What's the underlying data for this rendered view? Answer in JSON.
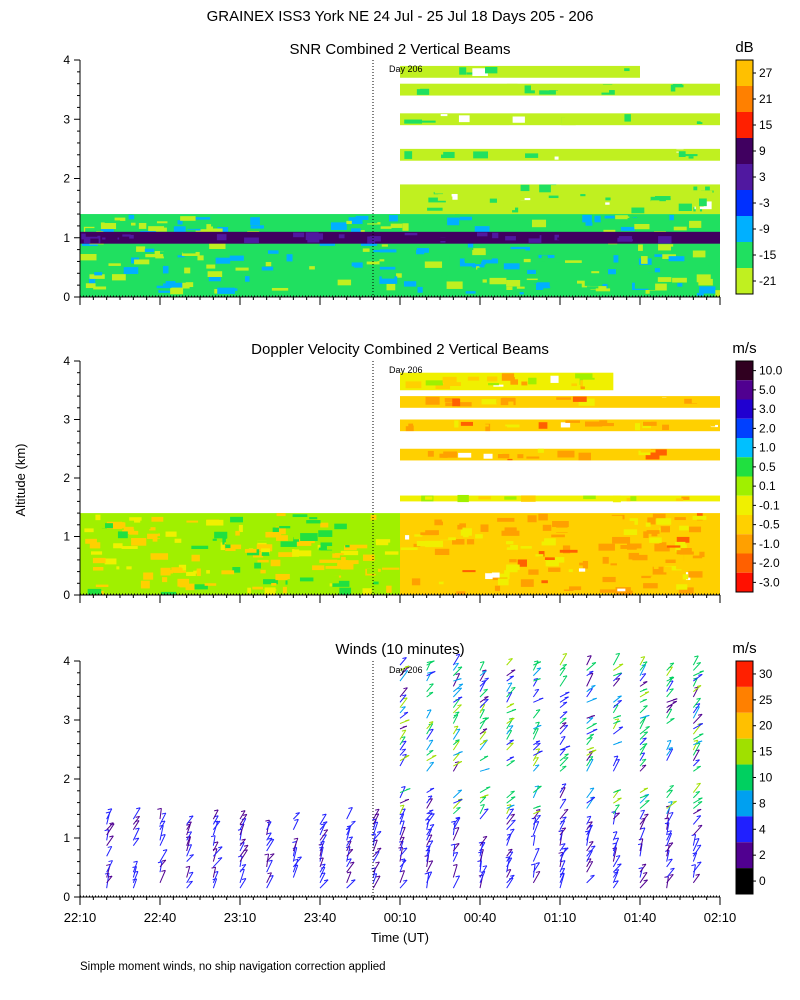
{
  "page_title": "GRAINEX ISS3 York NE  24 Jul - 25 Jul 18 Days 205 - 206",
  "footer_note": "Simple moment winds, no ship navigation correction applied",
  "ylabel": "Altitude (km)",
  "xlabel": "Time (UT)",
  "day_marker": "Day 206",
  "chart_data": [
    {
      "type": "heatmap",
      "title": "SNR Combined 2 Vertical Beams",
      "units": "dB",
      "xlim": [
        "22:10",
        "02:10"
      ],
      "ylim": [
        0,
        4
      ],
      "y_ticks": [
        "0",
        "1",
        "2",
        "3",
        "4"
      ],
      "x_ticks": [
        "22:10",
        "22:40",
        "23:10",
        "23:40",
        "00:10",
        "00:40",
        "01:10",
        "01:40",
        "02:10"
      ],
      "colorbar_labels": [
        "27",
        "21",
        "15",
        "9",
        "3",
        "-3",
        "-9",
        "-15",
        "-21"
      ],
      "colorbar_colors": [
        "#ffc000",
        "#ff8000",
        "#ff2000",
        "#400060",
        "#5018a0",
        "#0030ff",
        "#00b0ff",
        "#20e060",
        "#c0f020"
      ],
      "layers": [
        {
          "x0": "22:10",
          "x1": "02:10",
          "y0": 0.0,
          "y1": 1.4,
          "value": -12
        },
        {
          "x0": "22:10",
          "x1": "02:10",
          "y0": 0.9,
          "y1": 1.1,
          "value": 9
        },
        {
          "x0": "00:10",
          "x1": "02:10",
          "y0": 1.4,
          "y1": 1.9,
          "value": -18
        },
        {
          "x0": "00:10",
          "x1": "02:10",
          "y0": 2.3,
          "y1": 2.5,
          "value": -18
        },
        {
          "x0": "00:10",
          "x1": "02:10",
          "y0": 2.9,
          "y1": 3.1,
          "value": -18
        },
        {
          "x0": "00:10",
          "x1": "02:10",
          "y0": 3.4,
          "y1": 3.6,
          "value": -18
        },
        {
          "x0": "00:10",
          "x1": "01:40",
          "y0": 3.7,
          "y1": 3.9,
          "value": -18
        }
      ]
    },
    {
      "type": "heatmap",
      "title": "Doppler Velocity Combined 2 Vertical Beams",
      "units": "m/s",
      "xlim": [
        "22:10",
        "02:10"
      ],
      "ylim": [
        0,
        4
      ],
      "y_ticks": [
        "0",
        "1",
        "2",
        "3",
        "4"
      ],
      "x_ticks": [
        "22:10",
        "22:40",
        "23:10",
        "23:40",
        "00:10",
        "00:40",
        "01:10",
        "01:40",
        "02:10"
      ],
      "colorbar_labels": [
        "10.0",
        "5.0",
        "3.0",
        "2.0",
        "1.0",
        "0.5",
        "0.1",
        "-0.1",
        "-0.5",
        "-1.0",
        "-2.0",
        "-3.0"
      ],
      "colorbar_colors": [
        "#300020",
        "#500090",
        "#2000d0",
        "#0040ff",
        "#00c0ff",
        "#20e040",
        "#a0f000",
        "#f0f000",
        "#ffd000",
        "#ffa000",
        "#ff6000",
        "#ff1000"
      ],
      "layers": [
        {
          "x0": "22:10",
          "x1": "00:10",
          "y0": 0.0,
          "y1": 1.4,
          "value": 0.1
        },
        {
          "x0": "00:10",
          "x1": "02:10",
          "y0": 0.0,
          "y1": 1.4,
          "value": -0.5
        },
        {
          "x0": "00:10",
          "x1": "02:10",
          "y0": 1.6,
          "y1": 1.7,
          "value": -0.1
        },
        {
          "x0": "00:10",
          "x1": "02:10",
          "y0": 2.3,
          "y1": 2.5,
          "value": -0.5
        },
        {
          "x0": "00:10",
          "x1": "02:10",
          "y0": 2.8,
          "y1": 3.0,
          "value": -0.5
        },
        {
          "x0": "00:10",
          "x1": "02:10",
          "y0": 3.2,
          "y1": 3.4,
          "value": -0.5
        },
        {
          "x0": "00:10",
          "x1": "01:30",
          "y0": 3.5,
          "y1": 3.8,
          "value": -0.1
        }
      ]
    },
    {
      "type": "scatter",
      "title": "Winds (10 minutes)",
      "units": "m/s",
      "xlim": [
        "22:10",
        "02:10"
      ],
      "ylim": [
        0,
        4
      ],
      "y_ticks": [
        "0",
        "1",
        "2",
        "3",
        "4"
      ],
      "x_ticks": [
        "22:10",
        "22:40",
        "23:10",
        "23:40",
        "00:10",
        "00:40",
        "01:10",
        "01:40",
        "02:10"
      ],
      "colorbar_labels": [
        "30",
        "25",
        "20",
        "15",
        "10",
        "8",
        "4",
        "2",
        "0"
      ],
      "colorbar_colors": [
        "#ff2000",
        "#ff8000",
        "#ffc000",
        "#a0e000",
        "#00d060",
        "#00a0f0",
        "#2020ff",
        "#500090",
        "#000000"
      ],
      "profiles": [
        {
          "time": "22:20",
          "top_km": 1.4
        },
        {
          "time": "22:30",
          "top_km": 1.4
        },
        {
          "time": "22:40",
          "top_km": 1.4
        },
        {
          "time": "22:50",
          "top_km": 1.4
        },
        {
          "time": "23:00",
          "top_km": 1.4
        },
        {
          "time": "23:10",
          "top_km": 1.4
        },
        {
          "time": "23:20",
          "top_km": 1.4
        },
        {
          "time": "23:30",
          "top_km": 1.4
        },
        {
          "time": "23:40",
          "top_km": 1.4
        },
        {
          "time": "23:50",
          "top_km": 1.4
        },
        {
          "time": "00:00",
          "top_km": 1.4
        },
        {
          "time": "00:10",
          "top_km": 4.0
        },
        {
          "time": "00:20",
          "top_km": 4.0
        },
        {
          "time": "00:30",
          "top_km": 4.0
        },
        {
          "time": "00:40",
          "top_km": 4.0
        },
        {
          "time": "00:50",
          "top_km": 4.0
        },
        {
          "time": "01:00",
          "top_km": 4.0
        },
        {
          "time": "01:10",
          "top_km": 4.0
        },
        {
          "time": "01:20",
          "top_km": 4.0
        },
        {
          "time": "01:30",
          "top_km": 4.0
        },
        {
          "time": "01:40",
          "top_km": 4.0
        },
        {
          "time": "01:50",
          "top_km": 4.0
        },
        {
          "time": "02:00",
          "top_km": 4.0
        }
      ]
    }
  ]
}
